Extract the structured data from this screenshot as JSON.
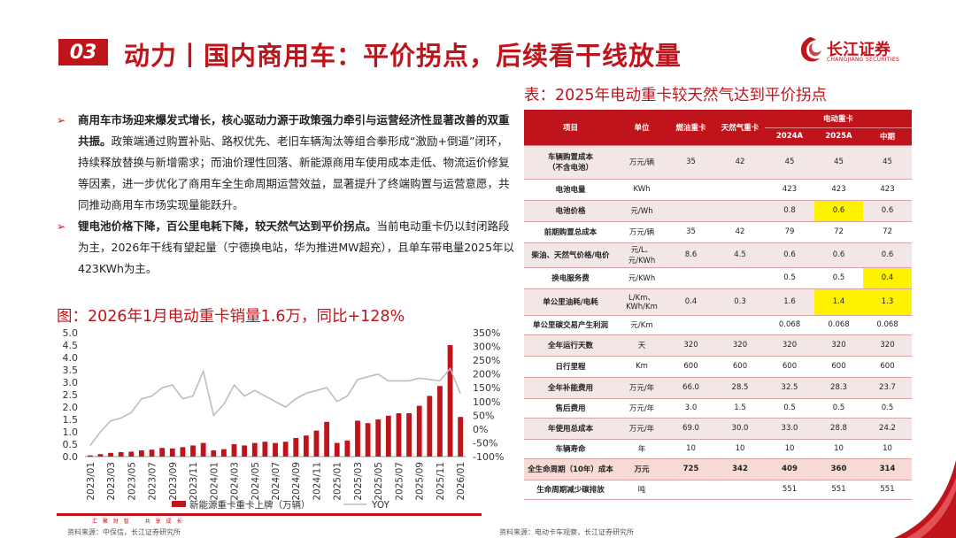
{
  "header": {
    "section_no": "03",
    "title": "动力丨国内商用车：平价拐点，后续看干线放量",
    "logo_cn": "长江证券",
    "logo_en": "CHANGJIANG SECURITIES"
  },
  "bullets": [
    {
      "bold": "商用车市场迎来爆发式增长，核心驱动力源于政策强力牵引与运营经济性显著改善的双重共振。",
      "text": "政策端通过购置补贴、路权优先、老旧车辆淘汰等组合拳形成“激励+倒逼”闭环，持续释放替换与新增需求；而油价理性回落、新能源商用车使用成本走低、物流运价修复等因素，进一步优化了商用车全生命周期运营效益，显著提升了终端购置与运营意愿，共同推动商用车市场实现量能跃升。"
    },
    {
      "bold": "锂电池价格下降，百公里电耗下降，较天然气达到平价拐点。",
      "text": "当前电动重卡仍以封闭路段为主，2026年干线有望起量（宁德换电站，华为推进MW超充），且单车带电量2025年以423KWh为主。"
    }
  ],
  "chart_title": "图：2026年1月电动重卡销量1.6万，同比+128%",
  "chart_data": {
    "type": "bar",
    "categories": [
      "2023/01",
      "2023/02",
      "2023/03",
      "2023/04",
      "2023/05",
      "2023/06",
      "2023/07",
      "2023/08",
      "2023/09",
      "2023/10",
      "2023/11",
      "2023/12",
      "2024/01",
      "2024/02",
      "2024/03",
      "2024/04",
      "2024/05",
      "2024/06",
      "2024/07",
      "2024/08",
      "2024/09",
      "2024/10",
      "2024/11",
      "2024/12",
      "2025/01",
      "2025/02",
      "2025/03",
      "2025/04",
      "2025/05",
      "2025/06",
      "2025/07",
      "2025/08",
      "2025/09",
      "2025/10",
      "2025/11",
      "2025/12",
      "2026/01"
    ],
    "tick_labels": [
      "2023/01",
      "2023/03",
      "2023/05",
      "2023/07",
      "2023/09",
      "2023/11",
      "2024/01",
      "2024/03",
      "2024/05",
      "2024/07",
      "2024/09",
      "2024/11",
      "2025/01",
      "2025/03",
      "2025/05",
      "2025/07",
      "2025/09",
      "2025/11",
      "2026/01"
    ],
    "series": [
      {
        "name": "新能源重卡重卡上牌（万辆）",
        "type": "bar",
        "axis": "left",
        "color": "#c0141c",
        "values": [
          0.05,
          0.1,
          0.15,
          0.18,
          0.2,
          0.25,
          0.28,
          0.35,
          0.33,
          0.38,
          0.45,
          0.55,
          0.25,
          0.3,
          0.5,
          0.45,
          0.55,
          0.6,
          0.55,
          0.6,
          0.75,
          0.85,
          1.05,
          1.4,
          0.55,
          0.65,
          1.45,
          1.35,
          1.5,
          1.65,
          1.75,
          1.75,
          2.05,
          2.45,
          2.85,
          4.5,
          1.6
        ]
      },
      {
        "name": "YOY",
        "type": "line",
        "axis": "right",
        "color": "#bdbdbd",
        "values": [
          -60,
          -10,
          30,
          40,
          60,
          110,
          120,
          150,
          160,
          110,
          120,
          210,
          50,
          90,
          160,
          120,
          140,
          120,
          100,
          80,
          110,
          130,
          140,
          150,
          100,
          120,
          180,
          190,
          200,
          175,
          175,
          175,
          185,
          180,
          175,
          220,
          128
        ]
      }
    ],
    "y_left": {
      "min": 0,
      "max": 5,
      "ticks": [
        "0.0",
        "0.5",
        "1.0",
        "1.5",
        "2.0",
        "2.5",
        "3.0",
        "3.5",
        "4.0",
        "4.5",
        "5.0"
      ]
    },
    "y_right": {
      "min": -100,
      "max": 350,
      "ticks": [
        "-100%",
        "-50%",
        "0%",
        "50%",
        "100%",
        "150%",
        "200%",
        "250%",
        "300%",
        "350%"
      ]
    },
    "legend": {
      "position": "bottom",
      "bar_label": "新能源重卡重卡上牌（万辆）",
      "line_label": "YOY"
    }
  },
  "table": {
    "title": "表：2025年电动重卡较天然气达到平价拐点",
    "head": {
      "item": "项目",
      "unit": "单位",
      "diesel": "燃油重卡",
      "gas": "天然气重卡",
      "ev": "电动重卡",
      "y2024": "2024A",
      "y2025": "2025A",
      "mid": "中期"
    },
    "rows": [
      {
        "name": "车辆购置成本\n（不含电池）",
        "unit": "万元/辆",
        "c": [
          "35",
          "42",
          "45",
          "45",
          "45"
        ]
      },
      {
        "name": "电池电量",
        "unit": "KWh",
        "c": [
          "",
          "",
          "423",
          "423",
          "423"
        ]
      },
      {
        "name": "电池价格",
        "unit": "元/Wh",
        "c": [
          "",
          "",
          "0.8",
          "0.6",
          "0.6"
        ],
        "hl": [
          3
        ]
      },
      {
        "name": "前期购置总成本",
        "unit": "万元/辆",
        "c": [
          "35",
          "42",
          "79",
          "72",
          "72"
        ]
      },
      {
        "name": "柴油、天然气价格/电价",
        "unit": "元/L、元/KWh",
        "c": [
          "8.6",
          "4.5",
          "0.6",
          "0.6",
          "0.6"
        ]
      },
      {
        "name": "换电服务费",
        "unit": "元/KWh",
        "c": [
          "",
          "",
          "0.5",
          "0.5",
          "0.4"
        ],
        "hl": [
          4
        ]
      },
      {
        "name": "单公里油耗/电耗",
        "unit": "L/Km、KWh/Km",
        "c": [
          "0.4",
          "0.3",
          "1.6",
          "1.4",
          "1.3"
        ],
        "hl": [
          3,
          4
        ]
      },
      {
        "name": "单公里碳交易产生利润",
        "unit": "元/Km",
        "c": [
          "",
          "",
          "0.068",
          "0.068",
          "0.068"
        ]
      },
      {
        "name": "全年运行天数",
        "unit": "天",
        "c": [
          "320",
          "320",
          "320",
          "320",
          "320"
        ]
      },
      {
        "name": "日行里程",
        "unit": "Km",
        "c": [
          "600",
          "600",
          "600",
          "600",
          "600"
        ]
      },
      {
        "name": "全年补能费用",
        "unit": "万元/年",
        "c": [
          "66.0",
          "28.5",
          "32.5",
          "28.3",
          "23.7"
        ]
      },
      {
        "name": "售后费用",
        "unit": "万元/年",
        "c": [
          "3.0",
          "1.5",
          "0.5",
          "0.5",
          "0.5"
        ]
      },
      {
        "name": "年使用总成本",
        "unit": "万元/年",
        "c": [
          "69.0",
          "30.0",
          "33.0",
          "28.8",
          "24.2"
        ]
      },
      {
        "name": "车辆寿命",
        "unit": "年",
        "c": [
          "10",
          "10",
          "10",
          "10",
          "10"
        ]
      },
      {
        "name": "全生命周期（10年）成本",
        "unit": "万元",
        "c": [
          "725",
          "342",
          "409",
          "360",
          "314"
        ],
        "life": true
      },
      {
        "name": "生命周期减少碳排放",
        "unit": "吨",
        "c": [
          "",
          "",
          "551",
          "551",
          "551"
        ]
      }
    ]
  },
  "sources": {
    "left": "资料来源：中保信，长江证券研究所",
    "right": "资料来源：电动卡车观察，长江证券研究所"
  },
  "footer_text": "汇 聚 财 智　　共 享 成 长"
}
